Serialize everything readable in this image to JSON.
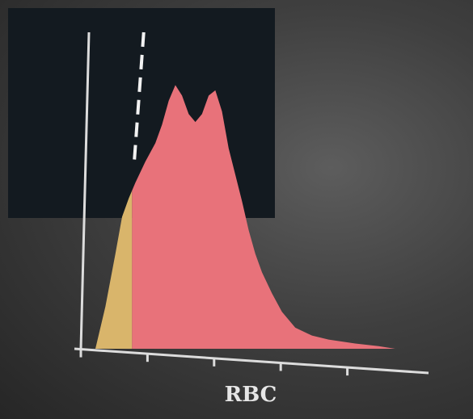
{
  "chart_data": {
    "type": "area",
    "title": "",
    "xlabel": "RBC",
    "ylabel": "",
    "x_tick_count": 5,
    "x": [
      0,
      0.03,
      0.06,
      0.08,
      0.1,
      0.12,
      0.15,
      0.18,
      0.2,
      0.22,
      0.24,
      0.26,
      0.28,
      0.3,
      0.32,
      0.34,
      0.36,
      0.38,
      0.4,
      0.42,
      0.44,
      0.46,
      0.48,
      0.5,
      0.53,
      0.56,
      0.6,
      0.65,
      0.7,
      0.78,
      0.85,
      0.9
    ],
    "y": [
      0,
      0.16,
      0.36,
      0.5,
      0.57,
      0.63,
      0.71,
      0.78,
      0.85,
      0.94,
      1.0,
      0.96,
      0.89,
      0.86,
      0.89,
      0.96,
      0.98,
      0.9,
      0.76,
      0.66,
      0.56,
      0.45,
      0.36,
      0.29,
      0.21,
      0.14,
      0.08,
      0.05,
      0.035,
      0.02,
      0.01,
      0.0
    ],
    "xlim": [
      0,
      1
    ],
    "ylim": [
      0,
      1.2
    ],
    "discriminator_x": 0.145,
    "excluded_region": [
      0,
      0.11
    ],
    "colors": {
      "fill": "#e8727a",
      "excluded_fill": "#d9b56b",
      "axis": "#dcdcdc",
      "plot_background": "#131a20",
      "label": "#e6e6e6"
    }
  }
}
